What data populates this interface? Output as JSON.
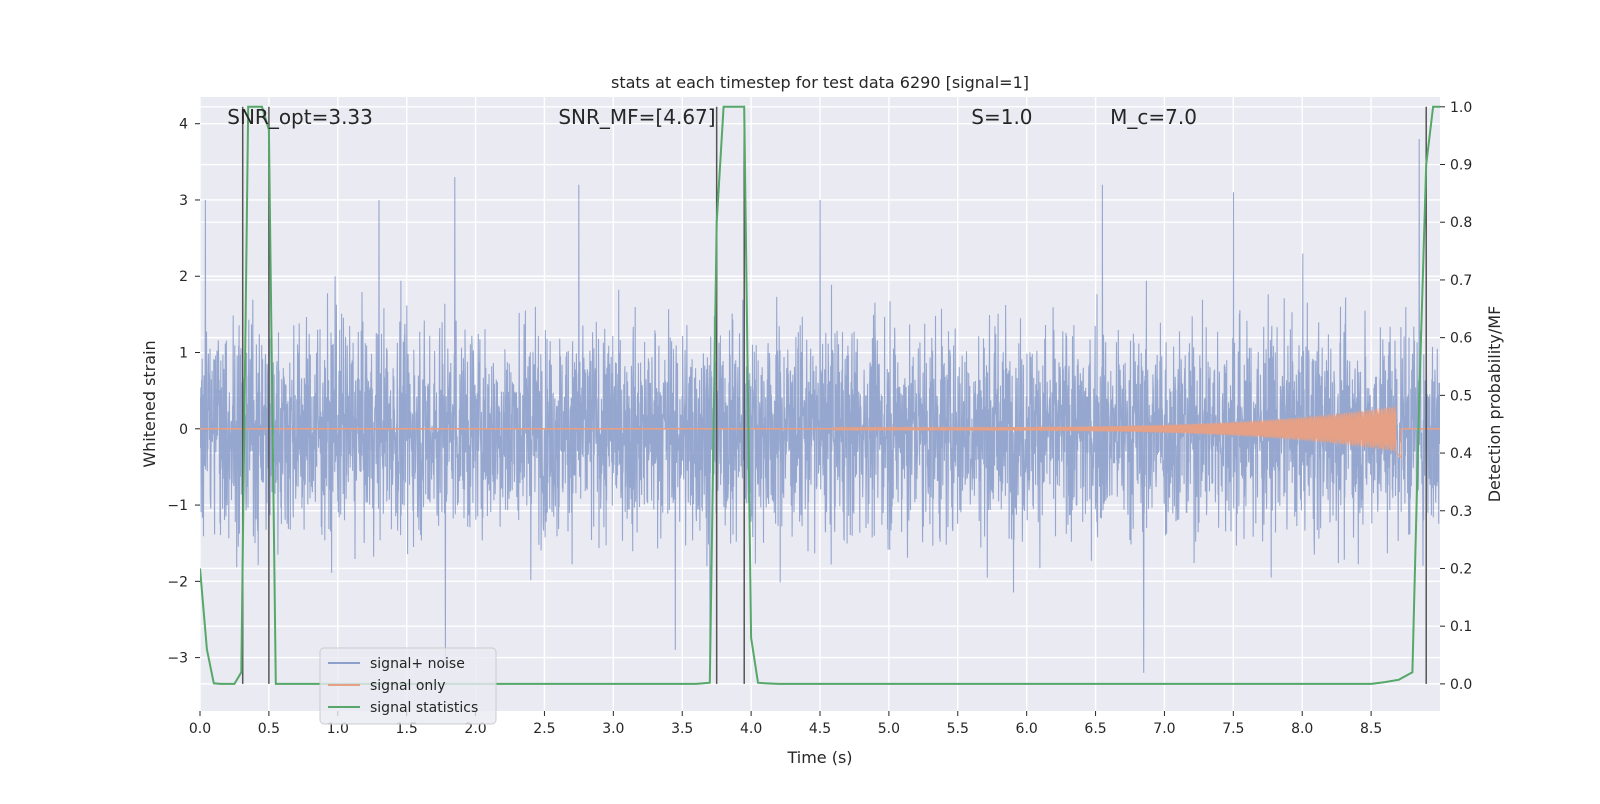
{
  "chart_data": {
    "type": "line",
    "title": "stats at each timestep for test data 6290 [signal=1]",
    "xlabel": "Time (s)",
    "ylabel_left": "Whitened strain",
    "ylabel_right": "Detection probability/MF",
    "xlim": [
      0.0,
      9.0
    ],
    "ylim_left": [
      -3.7,
      4.35
    ],
    "ylim_right": [
      -0.047,
      1.017
    ],
    "x_ticks": [
      0.0,
      0.5,
      1.0,
      1.5,
      2.0,
      2.5,
      3.0,
      3.5,
      4.0,
      4.5,
      5.0,
      5.5,
      6.0,
      6.5,
      7.0,
      7.5,
      8.0,
      8.5
    ],
    "x_tick_labels": [
      "0.0",
      "0.5",
      "1.0",
      "1.5",
      "2.0",
      "2.5",
      "3.0",
      "3.5",
      "4.0",
      "4.5",
      "5.0",
      "5.5",
      "6.0",
      "6.5",
      "7.0",
      "7.5",
      "8.0",
      "8.5"
    ],
    "y_left_ticks": [
      -3,
      -2,
      -1,
      0,
      1,
      2,
      3,
      4
    ],
    "y_left_tick_labels": [
      "−3",
      "−2",
      "−1",
      "0",
      "1",
      "2",
      "3",
      "4"
    ],
    "y_right_ticks": [
      0.0,
      0.1,
      0.2,
      0.3,
      0.4,
      0.5,
      0.6,
      0.7,
      0.8,
      0.9,
      1.0
    ],
    "y_right_tick_labels": [
      "0.0",
      "0.1",
      "0.2",
      "0.3",
      "0.4",
      "0.5",
      "0.6",
      "0.7",
      "0.8",
      "0.9",
      "1.0"
    ],
    "grid": true,
    "legend_position": "lower-left",
    "legend": [
      "signal+ noise",
      "signal only",
      "signal statistics"
    ],
    "series": [
      {
        "name": "signal+ noise",
        "color": "#8da0cb",
        "axis": "left",
        "kind": "noise",
        "typical_range": [
          -2.0,
          2.5
        ],
        "peaks": [
          {
            "x": 0.04,
            "y": 3.0
          },
          {
            "x": 0.5,
            "y": 2.8
          },
          {
            "x": 0.98,
            "y": 2.0
          },
          {
            "x": 1.3,
            "y": 3.0
          },
          {
            "x": 1.85,
            "y": 3.3
          },
          {
            "x": 1.78,
            "y": -3.1
          },
          {
            "x": 2.75,
            "y": 3.2
          },
          {
            "x": 3.45,
            "y": -2.9
          },
          {
            "x": 3.7,
            "y": -3.0
          },
          {
            "x": 4.5,
            "y": 3.0
          },
          {
            "x": 6.55,
            "y": 3.2
          },
          {
            "x": 6.85,
            "y": -3.2
          },
          {
            "x": 7.5,
            "y": 3.1
          },
          {
            "x": 8.85,
            "y": 3.8
          }
        ]
      },
      {
        "name": "signal only",
        "color": "#e5a085",
        "axis": "left",
        "kind": "chirp",
        "start_x": 4.6,
        "peak_x": 8.68,
        "end_x": 8.72,
        "amplitude_start": 0.02,
        "amplitude_peak": 0.3
      },
      {
        "name": "signal statistics",
        "color": "#55a868",
        "axis": "right",
        "x": [
          0.0,
          0.05,
          0.1,
          0.15,
          0.25,
          0.3,
          0.35,
          0.4,
          0.45,
          0.5,
          0.55,
          1.0,
          2.0,
          3.0,
          3.6,
          3.7,
          3.75,
          3.8,
          3.9,
          3.95,
          4.0,
          4.05,
          4.1,
          4.2,
          5.0,
          6.0,
          7.0,
          8.0,
          8.5,
          8.6,
          8.7,
          8.8,
          8.85,
          8.9,
          8.95,
          9.0
        ],
        "y": [
          0.2,
          0.06,
          0.001,
          0.0,
          0.0,
          0.02,
          1.0,
          1.0,
          1.0,
          0.96,
          0.0,
          0.0,
          0.0,
          0.0,
          0.0,
          0.002,
          0.8,
          1.0,
          1.0,
          1.0,
          0.08,
          0.002,
          0.001,
          0.0,
          0.0,
          0.0,
          0.0,
          0.0,
          0.0,
          0.003,
          0.007,
          0.02,
          0.5,
          0.9,
          1.0,
          1.0
        ]
      }
    ],
    "vlines": {
      "color": "#555555",
      "x": [
        0.31,
        0.5,
        3.75,
        3.95,
        8.9
      ],
      "ymin": 0.0,
      "ymax": 1.0
    },
    "annotations": [
      {
        "label": "SNR_opt=3.33",
        "x_axes": 0.022
      },
      {
        "label": "SNR_MF=[4.67]",
        "x_axes": 0.289
      },
      {
        "label": "S=1.0",
        "x_axes": 0.622
      },
      {
        "label": "M_c=7.0",
        "x_axes": 0.734
      }
    ]
  }
}
